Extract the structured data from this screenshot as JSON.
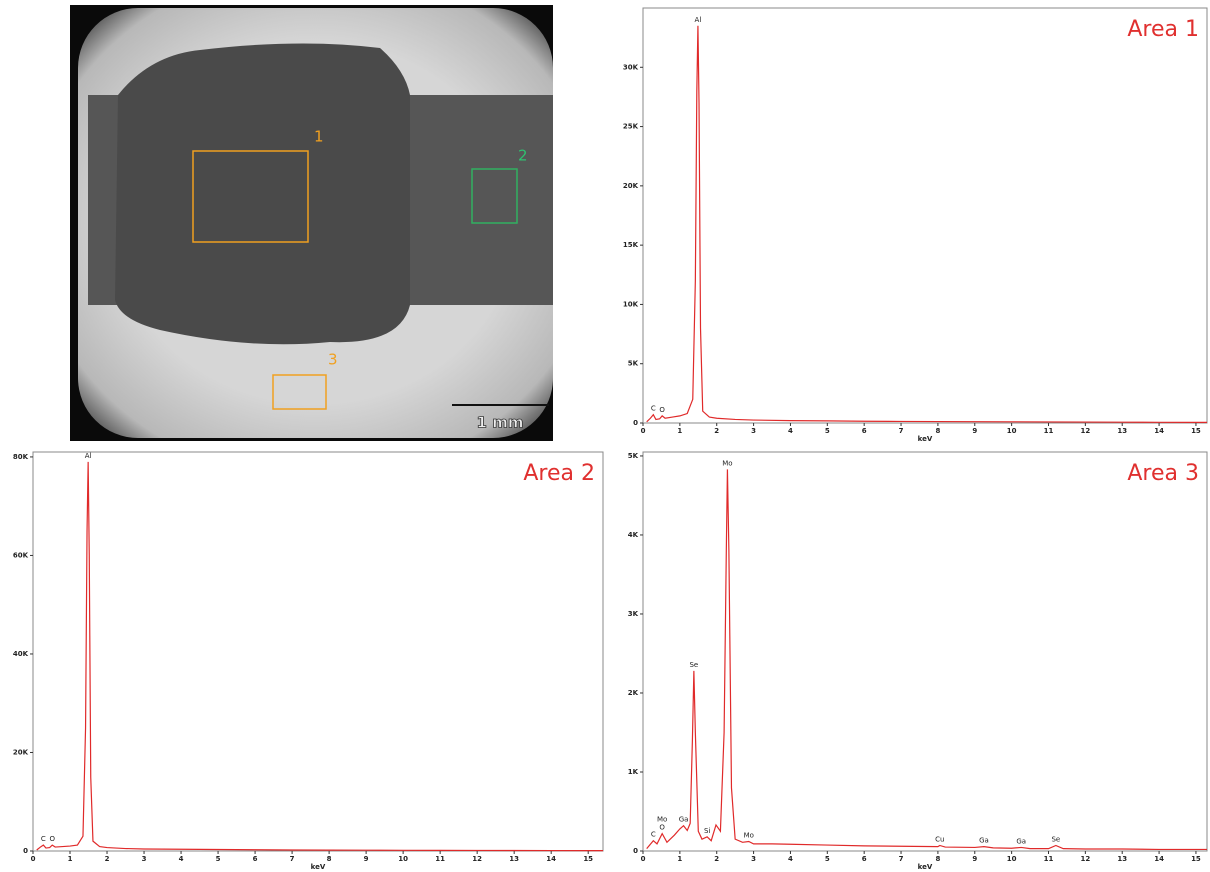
{
  "image": {
    "region_labels": [
      "1",
      "2",
      "3"
    ],
    "scale_bar": "1 mm"
  },
  "chart_data": [
    {
      "type": "line",
      "title": "Area 1",
      "xlabel": "keV",
      "color": "#e02a2a",
      "xlim": [
        0,
        15.3
      ],
      "ylim": [
        0,
        35000
      ],
      "xticks": [
        0,
        1,
        2,
        3,
        4,
        5,
        6,
        7,
        8,
        9,
        10,
        11,
        12,
        13,
        14,
        15
      ],
      "yticks": [
        0,
        {
          "value": 5000,
          "label": "5K"
        },
        {
          "value": 10000,
          "label": "10K"
        },
        {
          "value": 15000,
          "label": "15K"
        },
        {
          "value": 20000,
          "label": "20K"
        },
        {
          "value": 25000,
          "label": "25K"
        },
        {
          "value": 30000,
          "label": "30K"
        }
      ],
      "x": [
        0.1,
        0.2,
        0.28,
        0.35,
        0.45,
        0.52,
        0.6,
        0.8,
        1.0,
        1.2,
        1.35,
        1.42,
        1.46,
        1.49,
        1.52,
        1.56,
        1.62,
        1.8,
        2.0,
        2.5,
        3,
        4,
        5,
        6,
        7,
        8,
        9,
        10,
        11,
        12,
        13,
        14,
        15,
        15.3
      ],
      "values": [
        100,
        400,
        700,
        300,
        350,
        600,
        400,
        500,
        600,
        800,
        2000,
        12000,
        28000,
        33500,
        27000,
        8000,
        1000,
        500,
        400,
        300,
        250,
        200,
        180,
        150,
        130,
        120,
        110,
        100,
        90,
        80,
        70,
        60,
        50,
        50
      ],
      "annotations": [
        {
          "text": "Al",
          "x": 1.49
        },
        {
          "text": "C",
          "x": 0.28
        },
        {
          "text": "O",
          "x": 0.52
        }
      ]
    },
    {
      "type": "line",
      "title": "Area 2",
      "xlabel": "keV",
      "color": "#e02a2a",
      "xlim": [
        0,
        15.4
      ],
      "ylim": [
        0,
        81000
      ],
      "xticks": [
        0,
        1,
        2,
        3,
        4,
        5,
        6,
        7,
        8,
        9,
        10,
        11,
        12,
        13,
        14,
        15
      ],
      "yticks": [
        0,
        {
          "value": 20000,
          "label": "20K"
        },
        {
          "value": 40000,
          "label": "40K"
        },
        {
          "value": 60000,
          "label": "60K"
        },
        {
          "value": 80000,
          "label": "80K"
        }
      ],
      "x": [
        0.1,
        0.2,
        0.28,
        0.35,
        0.45,
        0.52,
        0.6,
        0.8,
        1.0,
        1.2,
        1.35,
        1.42,
        1.46,
        1.49,
        1.52,
        1.56,
        1.62,
        1.8,
        2.0,
        2.5,
        3,
        4,
        5,
        6,
        7,
        8,
        9,
        10,
        11,
        12,
        13,
        14,
        15,
        15.4
      ],
      "values": [
        200,
        800,
        1200,
        600,
        700,
        1200,
        800,
        900,
        1000,
        1200,
        3000,
        25000,
        65000,
        79000,
        60000,
        15000,
        2000,
        900,
        700,
        500,
        400,
        350,
        300,
        250,
        200,
        180,
        160,
        140,
        120,
        110,
        100,
        90,
        80,
        80
      ],
      "annotations": [
        {
          "text": "Al",
          "x": 1.49
        },
        {
          "text": "C",
          "x": 0.28
        },
        {
          "text": "O",
          "x": 0.52
        }
      ]
    },
    {
      "type": "line",
      "title": "Area 3",
      "xlabel": "keV",
      "color": "#e02a2a",
      "xlim": [
        0,
        15.3
      ],
      "ylim": [
        0,
        5050
      ],
      "xticks": [
        0,
        1,
        2,
        3,
        4,
        5,
        6,
        7,
        8,
        9,
        10,
        11,
        12,
        13,
        14,
        15
      ],
      "yticks": [
        0,
        {
          "value": 1000,
          "label": "1K"
        },
        {
          "value": 2000,
          "label": "2K"
        },
        {
          "value": 3000,
          "label": "3K"
        },
        {
          "value": 4000,
          "label": "4K"
        },
        {
          "value": 5000,
          "label": "5K"
        }
      ],
      "x": [
        0.1,
        0.28,
        0.38,
        0.52,
        0.65,
        0.85,
        1.0,
        1.1,
        1.2,
        1.28,
        1.34,
        1.38,
        1.42,
        1.5,
        1.6,
        1.74,
        1.85,
        1.98,
        2.1,
        2.2,
        2.26,
        2.29,
        2.33,
        2.4,
        2.5,
        2.7,
        2.87,
        3.0,
        3.5,
        4,
        5,
        6,
        7,
        8,
        8.05,
        8.2,
        9,
        9.25,
        9.5,
        10,
        10.26,
        10.5,
        11,
        11.2,
        11.4,
        12,
        13,
        14,
        15,
        15.3
      ],
      "values": [
        30,
        130,
        90,
        220,
        110,
        200,
        280,
        320,
        260,
        350,
        1400,
        2280,
        1500,
        250,
        150,
        180,
        130,
        330,
        250,
        1500,
        3800,
        4830,
        3800,
        800,
        150,
        110,
        120,
        90,
        90,
        85,
        75,
        65,
        60,
        55,
        70,
        50,
        45,
        55,
        40,
        35,
        45,
        30,
        30,
        70,
        30,
        25,
        25,
        20,
        20,
        20
      ],
      "annotations": [
        {
          "text": "C",
          "x": 0.28
        },
        {
          "text": "O",
          "x": 0.52
        },
        {
          "text": "Mo",
          "x": 0.52
        },
        {
          "text": "Ga",
          "x": 1.1
        },
        {
          "text": "Se",
          "x": 1.38
        },
        {
          "text": "Si",
          "x": 1.74
        },
        {
          "text": "Mo",
          "x": 2.29
        },
        {
          "text": "Mo",
          "x": 2.87
        },
        {
          "text": "Cu",
          "x": 8.05
        },
        {
          "text": "Ga",
          "x": 9.25
        },
        {
          "text": "Ga",
          "x": 10.26
        },
        {
          "text": "Se",
          "x": 11.2
        }
      ]
    }
  ]
}
